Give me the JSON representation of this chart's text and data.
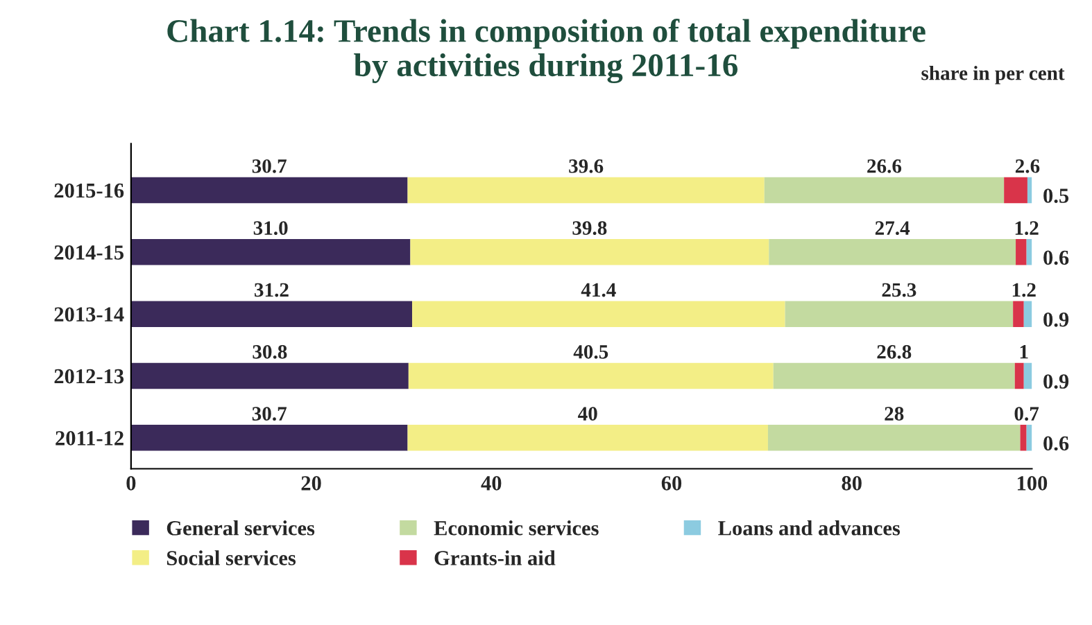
{
  "chart_data": {
    "type": "bar",
    "orientation": "horizontal",
    "stacked": true,
    "title": "Chart 1.14: Trends in composition of total expenditure\nby activities during 2011-16",
    "subtitle": "share in per cent",
    "categories": [
      "2015-16",
      "2014-15",
      "2013-14",
      "2012-13",
      "2011-12"
    ],
    "series": [
      {
        "name": "General services",
        "color": "#3b2a5a",
        "values": [
          30.7,
          31.0,
          31.2,
          30.8,
          30.7
        ],
        "value_labels": [
          "30.7",
          "31.0",
          "31.2",
          "30.8",
          "30.7"
        ]
      },
      {
        "name": "Social services",
        "color": "#f3ee86",
        "values": [
          39.6,
          39.8,
          41.4,
          40.5,
          40
        ],
        "value_labels": [
          "39.6",
          "39.8",
          "41.4",
          "40.5",
          "40"
        ]
      },
      {
        "name": "Economic services",
        "color": "#c3daa0",
        "values": [
          26.6,
          27.4,
          25.3,
          26.8,
          28
        ],
        "value_labels": [
          "26.6",
          "27.4",
          "25.3",
          "26.8",
          "28"
        ]
      },
      {
        "name": "Grants-in aid",
        "color": "#d9344a",
        "values": [
          2.6,
          1.2,
          1.2,
          1,
          0.7
        ],
        "value_labels": [
          "2.6",
          "1.2",
          "1.2",
          "1",
          "0.7"
        ]
      },
      {
        "name": "Loans and advances",
        "color": "#8ccbe0",
        "values": [
          0.5,
          0.6,
          0.9,
          0.9,
          0.6
        ],
        "value_labels": [
          "0.5",
          "0.6",
          "0.9",
          "0.9",
          "0.6"
        ]
      }
    ],
    "xlim": [
      0,
      100
    ],
    "xticks": [
      0,
      20,
      40,
      60,
      80,
      100
    ],
    "grid": false,
    "legend": "bottom"
  }
}
